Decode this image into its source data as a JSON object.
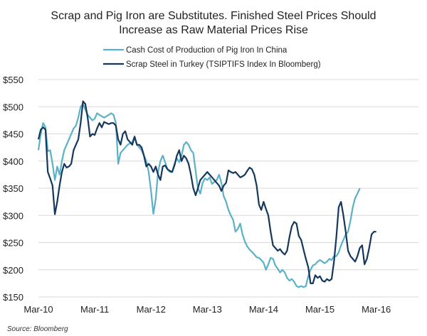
{
  "chart_data": {
    "type": "line",
    "title_line1": "Scrap and Pig Iron are Substitutes. Finished Steel Prices Should",
    "title_line2": "Increase as Raw Material Prices Rise",
    "source": "Source: Bloomberg",
    "ylim": [
      150,
      550
    ],
    "y_ticks": [
      150,
      200,
      250,
      300,
      350,
      400,
      450,
      500,
      550
    ],
    "y_tick_labels": [
      "$150",
      "$200",
      "$250",
      "$300",
      "$350",
      "$400",
      "$450",
      "$500",
      "$550"
    ],
    "x_tick_labels": [
      "Mar-10",
      "Mar-11",
      "Mar-12",
      "Mar-13",
      "Mar-14",
      "Mar-15",
      "Mar-16"
    ],
    "x_range_months": [
      0,
      81
    ],
    "grid": "horizontal",
    "legend_position": "top",
    "series": [
      {
        "name": "Cash Cost of Production of Pig Iron In China",
        "color": "#5ab1c8",
        "points": [
          [
            0,
            420
          ],
          [
            0.5,
            450
          ],
          [
            1,
            470
          ],
          [
            1.5,
            462
          ],
          [
            2,
            418
          ],
          [
            2.5,
            420
          ],
          [
            3,
            395
          ],
          [
            3.5,
            365
          ],
          [
            4,
            390
          ],
          [
            4.5,
            375
          ],
          [
            5,
            400
          ],
          [
            5.5,
            420
          ],
          [
            6,
            430
          ],
          [
            6.5,
            440
          ],
          [
            7,
            450
          ],
          [
            7.5,
            460
          ],
          [
            8,
            465
          ],
          [
            8.5,
            480
          ],
          [
            9,
            500
          ],
          [
            9.5,
            505
          ],
          [
            10,
            495
          ],
          [
            10.5,
            485
          ],
          [
            11,
            480
          ],
          [
            11.5,
            475
          ],
          [
            12,
            478
          ],
          [
            12.5,
            488
          ],
          [
            13,
            485
          ],
          [
            14,
            480
          ],
          [
            15,
            485
          ],
          [
            15.5,
            488
          ],
          [
            16,
            485
          ],
          [
            16.5,
            470
          ],
          [
            17,
            395
          ],
          [
            17.5,
            415
          ],
          [
            18,
            420
          ],
          [
            19,
            430
          ],
          [
            20,
            435
          ],
          [
            20.5,
            445
          ],
          [
            21,
            430
          ],
          [
            22,
            420
          ],
          [
            23,
            400
          ],
          [
            23.5,
            380
          ],
          [
            24,
            345
          ],
          [
            24.5,
            303
          ],
          [
            25,
            330
          ],
          [
            25.5,
            380
          ],
          [
            26,
            400
          ],
          [
            26.5,
            410
          ],
          [
            27,
            398
          ],
          [
            27.5,
            385
          ],
          [
            28,
            380
          ],
          [
            28.5,
            380
          ],
          [
            29,
            395
          ],
          [
            29.5,
            405
          ],
          [
            30,
            398
          ],
          [
            30.5,
            410
          ],
          [
            31,
            430
          ],
          [
            31.5,
            435
          ],
          [
            32,
            430
          ],
          [
            32.5,
            420
          ],
          [
            33,
            415
          ],
          [
            34,
            350
          ],
          [
            34.5,
            340
          ],
          [
            35,
            360
          ],
          [
            35.5,
            368
          ],
          [
            36,
            365
          ],
          [
            36.5,
            370
          ],
          [
            37,
            358
          ],
          [
            38,
            365
          ],
          [
            38.5,
            375
          ],
          [
            39,
            360
          ],
          [
            39.5,
            335
          ],
          [
            40,
            325
          ],
          [
            40.5,
            310
          ],
          [
            41,
            300
          ],
          [
            41.5,
            292
          ],
          [
            42,
            270
          ],
          [
            42.5,
            275
          ],
          [
            43,
            285
          ],
          [
            43.5,
            265
          ],
          [
            44,
            252
          ],
          [
            44.5,
            243
          ],
          [
            45,
            237
          ],
          [
            45.5,
            233
          ],
          [
            46,
            228
          ],
          [
            46.5,
            223
          ],
          [
            47,
            222
          ],
          [
            47.5,
            218
          ],
          [
            48,
            213
          ],
          [
            48.5,
            200
          ],
          [
            49,
            210
          ],
          [
            49.5,
            222
          ],
          [
            50,
            220
          ],
          [
            50.5,
            208
          ],
          [
            51,
            202
          ],
          [
            51.5,
            195
          ],
          [
            52,
            200
          ],
          [
            52.5,
            195
          ],
          [
            53,
            185
          ],
          [
            53.5,
            180
          ],
          [
            54,
            183
          ],
          [
            54.5,
            178
          ],
          [
            55,
            170
          ],
          [
            55.5,
            168
          ],
          [
            56,
            170
          ],
          [
            56.5,
            168
          ],
          [
            57,
            170
          ],
          [
            57.5,
            188
          ],
          [
            58,
            200
          ],
          [
            58.5,
            208
          ],
          [
            59,
            210
          ],
          [
            59.5,
            215
          ],
          [
            60,
            218
          ],
          [
            60.5,
            215
          ],
          [
            61,
            212
          ],
          [
            61.5,
            215
          ],
          [
            62,
            220
          ],
          [
            62.5,
            218
          ],
          [
            63,
            225
          ],
          [
            63.5,
            225
          ],
          [
            64,
            232
          ],
          [
            64.5,
            245
          ],
          [
            65,
            255
          ],
          [
            65.5,
            265
          ],
          [
            66,
            270
          ],
          [
            66.5,
            290
          ],
          [
            67,
            315
          ],
          [
            67.5,
            332
          ],
          [
            68,
            340
          ],
          [
            68.5,
            350
          ]
        ]
      },
      {
        "name": "Scrap Steel in Turkey (TSIPTIFS Index In Bloomberg)",
        "color": "#14375e",
        "points": [
          [
            0,
            440
          ],
          [
            0.5,
            458
          ],
          [
            1,
            462
          ],
          [
            1.5,
            458
          ],
          [
            2,
            380
          ],
          [
            2.5,
            368
          ],
          [
            3,
            355
          ],
          [
            3.5,
            302
          ],
          [
            4,
            325
          ],
          [
            4.5,
            355
          ],
          [
            5,
            380
          ],
          [
            5.5,
            395
          ],
          [
            6,
            388
          ],
          [
            6.5,
            390
          ],
          [
            7,
            395
          ],
          [
            7.5,
            420
          ],
          [
            8,
            430
          ],
          [
            8.5,
            440
          ],
          [
            9,
            470
          ],
          [
            9.5,
            510
          ],
          [
            10,
            505
          ],
          [
            10.5,
            480
          ],
          [
            11,
            445
          ],
          [
            11.5,
            450
          ],
          [
            12,
            448
          ],
          [
            12.5,
            460
          ],
          [
            13,
            470
          ],
          [
            13.5,
            462
          ],
          [
            14,
            472
          ],
          [
            15,
            468
          ],
          [
            15.5,
            470
          ],
          [
            16,
            470
          ],
          [
            16.5,
            465
          ],
          [
            17,
            440
          ],
          [
            17.5,
            430
          ],
          [
            18,
            450
          ],
          [
            18.5,
            455
          ],
          [
            19,
            440
          ],
          [
            20,
            430
          ],
          [
            20.5,
            445
          ],
          [
            21,
            430
          ],
          [
            21.5,
            430
          ],
          [
            22,
            425
          ],
          [
            22.5,
            410
          ],
          [
            23,
            390
          ],
          [
            23.5,
            395
          ],
          [
            24,
            390
          ],
          [
            24.5,
            380
          ],
          [
            25,
            390
          ],
          [
            25.5,
            375
          ],
          [
            26,
            365
          ],
          [
            26.5,
            390
          ],
          [
            27,
            392
          ],
          [
            27.5,
            385
          ],
          [
            28,
            382
          ],
          [
            28.5,
            380
          ],
          [
            29,
            392
          ],
          [
            29.5,
            410
          ],
          [
            30,
            420
          ],
          [
            30.5,
            400
          ],
          [
            31,
            410
          ],
          [
            31.5,
            405
          ],
          [
            32,
            395
          ],
          [
            32.5,
            375
          ],
          [
            33,
            350
          ],
          [
            33.5,
            337
          ],
          [
            34,
            350
          ],
          [
            34.5,
            365
          ],
          [
            35,
            370
          ],
          [
            35.5,
            375
          ],
          [
            36,
            380
          ],
          [
            36.5,
            375
          ],
          [
            37,
            370
          ],
          [
            37.5,
            365
          ],
          [
            38,
            360
          ],
          [
            38.5,
            355
          ],
          [
            39,
            345
          ],
          [
            39.5,
            355
          ],
          [
            40,
            360
          ],
          [
            40.5,
            383
          ],
          [
            41,
            380
          ],
          [
            41.5,
            378
          ],
          [
            42,
            380
          ],
          [
            42.5,
            375
          ],
          [
            43,
            370
          ],
          [
            43.5,
            372
          ],
          [
            44,
            375
          ],
          [
            44.5,
            382
          ],
          [
            45,
            388
          ],
          [
            45.5,
            385
          ],
          [
            46,
            375
          ],
          [
            46.5,
            355
          ],
          [
            47,
            320
          ],
          [
            47.5,
            310
          ],
          [
            48,
            325
          ],
          [
            48.5,
            312
          ],
          [
            49,
            300
          ],
          [
            49.5,
            270
          ],
          [
            50,
            245
          ],
          [
            50.5,
            240
          ],
          [
            51,
            235
          ],
          [
            51.5,
            238
          ],
          [
            52,
            232
          ],
          [
            52.5,
            228
          ],
          [
            53,
            235
          ],
          [
            53.5,
            260
          ],
          [
            54,
            280
          ],
          [
            54.5,
            288
          ],
          [
            55,
            285
          ],
          [
            55.5,
            262
          ],
          [
            56,
            255
          ],
          [
            56.5,
            237
          ],
          [
            57,
            220
          ],
          [
            57.5,
            205
          ],
          [
            58,
            175
          ],
          [
            58.5,
            175
          ],
          [
            59,
            190
          ],
          [
            59.5,
            185
          ],
          [
            60,
            188
          ],
          [
            60.5,
            180
          ],
          [
            61,
            178
          ],
          [
            61.5,
            183
          ],
          [
            62,
            180
          ],
          [
            62.5,
            183
          ],
          [
            63,
            215
          ],
          [
            63.5,
            260
          ],
          [
            64,
            315
          ],
          [
            64.5,
            325
          ],
          [
            65,
            300
          ],
          [
            65.5,
            270
          ],
          [
            66,
            235
          ],
          [
            66.5,
            225
          ],
          [
            67,
            220
          ],
          [
            67.5,
            215
          ],
          [
            68,
            225
          ],
          [
            68.5,
            240
          ],
          [
            69,
            245
          ],
          [
            69.5,
            210
          ],
          [
            70,
            220
          ],
          [
            70.5,
            240
          ],
          [
            71,
            265
          ],
          [
            71.5,
            270
          ],
          [
            72,
            270
          ]
        ]
      }
    ]
  }
}
